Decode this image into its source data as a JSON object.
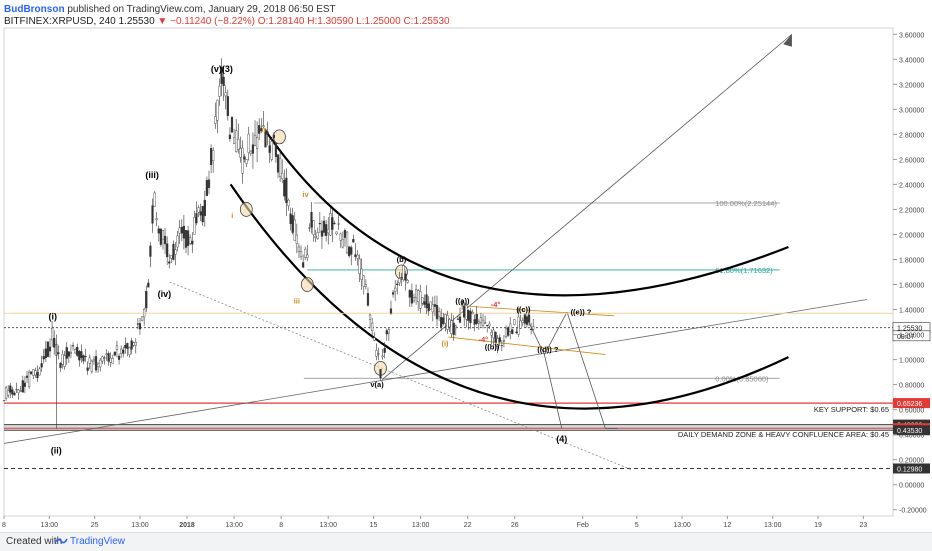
{
  "header": {
    "author": "BudBronson",
    "published": "published on TradingView.com, January 29, 2018 06:50 EST",
    "symbol": "BITFINEX:XRPUSD, 240",
    "last": "1.25530",
    "change": "−0.11240 (−8.22%)",
    "ohlc": "O:1.28140 H:1.30590 L:1.25000 C:1.25530"
  },
  "footer": {
    "created": "Created with",
    "brand": "TradingView"
  },
  "colors": {
    "candle": "#333333",
    "arc": "#000000",
    "support": "#e53935",
    "demand": "#333333",
    "fib": "#888888",
    "fib618": "#26a69a",
    "wave_minor": "#d4891a",
    "ellipse": "#f3d9a8",
    "neg_label": "#e53935"
  },
  "chart_data": {
    "type": "candlestick",
    "yaxis": {
      "min": -0.25,
      "max": 3.65,
      "ticks": [
        "3.60000",
        "3.40000",
        "3.20000",
        "3.00000",
        "2.80000",
        "2.60000",
        "2.40000",
        "2.20000",
        "2.00000",
        "1.80000",
        "1.60000",
        "1.40000",
        "1.20000",
        "1.00000",
        "0.80000",
        "0.60000",
        "0.40000",
        "0.20000",
        "0.00000",
        "-0.20000"
      ],
      "tick_values": [
        3.6,
        3.4,
        3.2,
        3.0,
        2.8,
        2.6,
        2.4,
        2.2,
        2.0,
        1.8,
        1.6,
        1.4,
        1.2,
        1.0,
        0.8,
        0.6,
        0.4,
        0.2,
        0.0,
        -0.2
      ]
    },
    "xaxis": {
      "labels": [
        "8",
        "13:00",
        "25",
        "13:00",
        "2018",
        "13:00",
        "8",
        "13:00",
        "15",
        "13:00",
        "22",
        "26",
        "Feb",
        "5",
        "13:00",
        "12",
        "13:00",
        "19",
        "23"
      ],
      "label_positions": [
        0,
        26,
        52,
        78,
        105,
        132,
        159,
        186,
        212,
        239,
        266,
        293,
        332,
        363,
        389,
        415,
        441,
        467,
        493
      ]
    },
    "price_labels": [
      {
        "text": "1.25530",
        "value": 1.2553,
        "style": "last"
      },
      {
        "text": "09:07",
        "value": 1.19,
        "style": "countdown"
      },
      {
        "text": "0.65236",
        "value": 0.65236,
        "style": "support"
      },
      {
        "text": "0.48036",
        "value": 0.48036,
        "style": "demand"
      },
      {
        "text": "0.45148",
        "value": 0.45148,
        "style": "support"
      },
      {
        "text": "0.43530",
        "value": 0.4353,
        "style": "demand"
      },
      {
        "text": "0.12980",
        "value": 0.1298,
        "style": "demand"
      }
    ],
    "horizontal_levels": [
      {
        "name": "key-support",
        "value": 0.65236,
        "color": "#e53935"
      },
      {
        "name": "demand-top",
        "value": 0.48036,
        "color": "#333333"
      },
      {
        "name": "demand-red",
        "value": 0.45148,
        "color": "#e53935"
      },
      {
        "name": "demand-bottom",
        "value": 0.4353,
        "color": "#333333"
      },
      {
        "name": "low-dashed",
        "value": 0.1298,
        "color": "#333333"
      },
      {
        "name": "last-price",
        "value": 1.2553,
        "color": "#555555"
      },
      {
        "name": "yellow-level",
        "value": 1.37,
        "color": "#f3d9a8"
      }
    ],
    "fib_levels": [
      {
        "label": "100.00%(2.25144)",
        "value": 2.25144
      },
      {
        "label": "61.80%(1.71632)",
        "value": 1.71632
      },
      {
        "label": "0.00%(0.85060)",
        "value": 0.8506
      }
    ],
    "zone_labels": [
      {
        "text": "KEY SUPPORT: $0.65",
        "value": 0.65236
      },
      {
        "text": "DAILY DEMAND ZONE & HEAVY CONFLUENCE AREA: $0.45",
        "value": 0.45148
      }
    ],
    "wave_labels": [
      {
        "text": "(v)(3)",
        "t": 125,
        "v": 3.3,
        "color": "#000000"
      },
      {
        "text": "(iii)",
        "t": 85,
        "v": 2.45,
        "color": "#000000"
      },
      {
        "text": "(iv)",
        "t": 92,
        "v": 1.5,
        "color": "#000000"
      },
      {
        "text": "(i)",
        "t": 28,
        "v": 1.32,
        "color": "#000000"
      },
      {
        "text": "(ii)",
        "t": 30,
        "v": 0.25,
        "color": "#000000"
      },
      {
        "text": "ii",
        "t": 149,
        "v": 2.82,
        "color": "#d4891a"
      },
      {
        "text": "i",
        "t": 131,
        "v": 2.13,
        "color": "#d4891a"
      },
      {
        "text": "iv",
        "t": 173,
        "v": 2.3,
        "color": "#d4891a"
      },
      {
        "text": "iii",
        "t": 168,
        "v": 1.45,
        "color": "#d4891a"
      },
      {
        "text": "v(a)",
        "t": 214,
        "v": 0.78,
        "color": "#000000"
      },
      {
        "text": "(b)",
        "t": 228,
        "v": 1.78,
        "color": "#000000"
      },
      {
        "text": "((a))",
        "t": 263,
        "v": 1.45,
        "color": "#000000"
      },
      {
        "text": "((c))",
        "t": 298,
        "v": 1.38,
        "color": "#000000"
      },
      {
        "text": "((b))",
        "t": 280,
        "v": 1.08,
        "color": "#000000"
      },
      {
        "text": "(i)",
        "t": 253,
        "v": 1.11,
        "color": "#d4891a"
      },
      {
        "text": "((d)) ?",
        "t": 312,
        "v": 1.06,
        "color": "#000000"
      },
      {
        "text": "((e)) ?",
        "t": 331,
        "v": 1.36,
        "color": "#000000"
      },
      {
        "text": "(4)",
        "t": 320,
        "v": 0.34,
        "color": "#000000"
      },
      {
        "text": "-4°",
        "t": 282,
        "v": 1.42,
        "color": "#e53935"
      },
      {
        "text": "-4°",
        "t": 275,
        "v": 1.14,
        "color": "#e53935"
      }
    ]
  }
}
